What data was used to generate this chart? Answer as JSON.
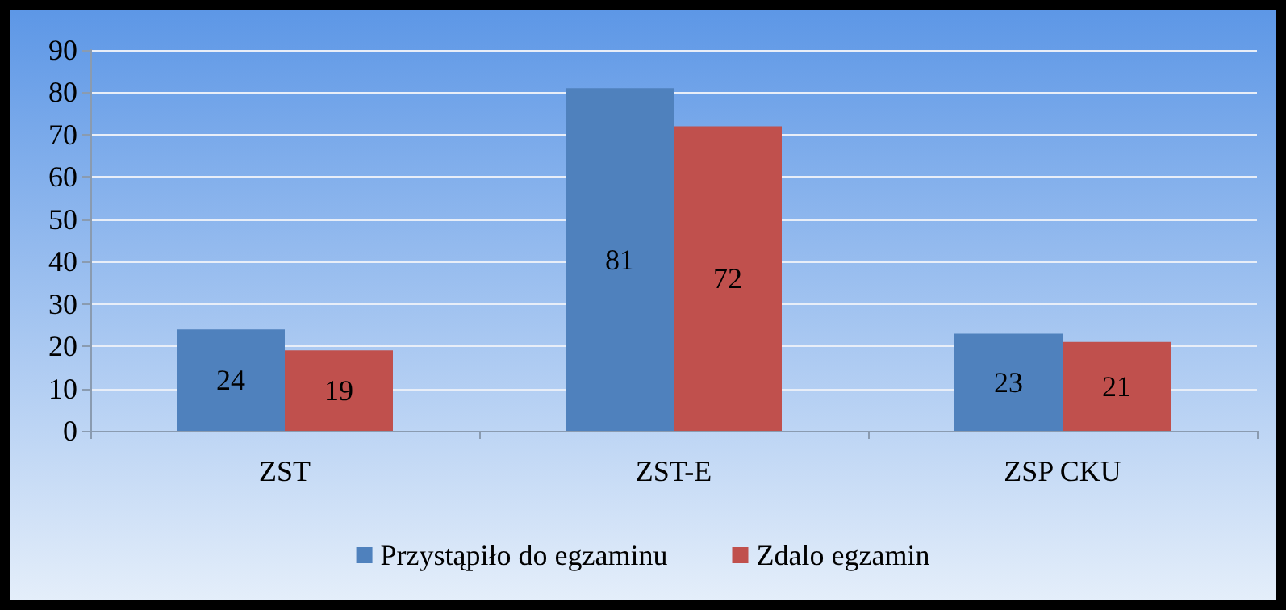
{
  "chart_data": {
    "type": "bar",
    "categories": [
      "ZST",
      "ZST-E",
      "ZSP CKU"
    ],
    "series": [
      {
        "name": "Przystąpiło do egzaminu",
        "color": "#4f81bd",
        "values": [
          24,
          81,
          23
        ]
      },
      {
        "name": "Zdalo egzamin",
        "color": "#c0504d",
        "values": [
          19,
          72,
          21
        ]
      }
    ],
    "ylim": [
      0,
      90
    ],
    "yticks": [
      0,
      10,
      20,
      30,
      40,
      50,
      60,
      70,
      80,
      90
    ],
    "grid": "y",
    "legend": "bottom",
    "data_labels": true
  }
}
